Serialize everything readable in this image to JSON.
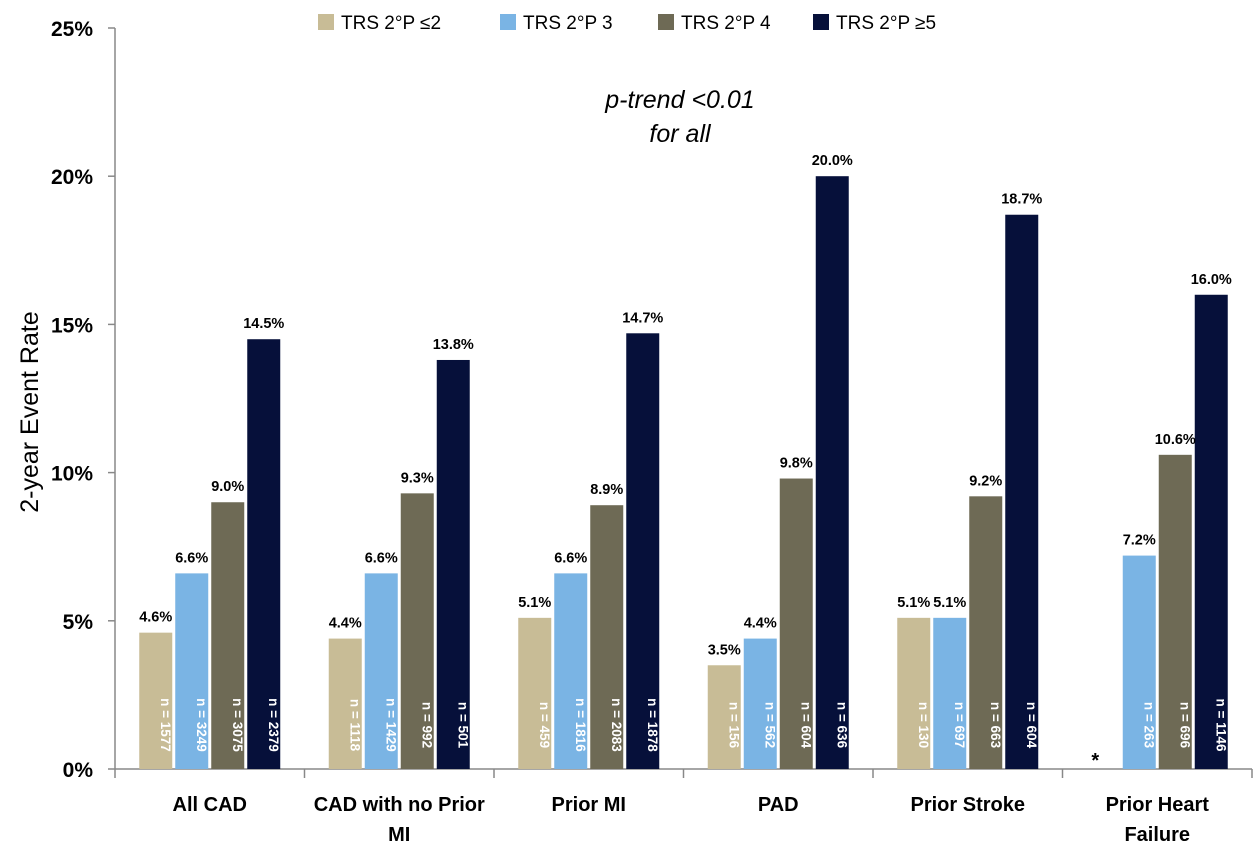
{
  "chart_data": {
    "type": "bar",
    "title": "",
    "ylabel": "2-year Event Rate",
    "xlabel": "",
    "ylim": [
      0,
      25
    ],
    "yticks": [
      "0%",
      "5%",
      "10%",
      "15%",
      "20%",
      "25%"
    ],
    "legend_position": "top",
    "categories": [
      [
        "All CAD"
      ],
      [
        "CAD with no Prior",
        "MI"
      ],
      [
        "Prior MI"
      ],
      [
        "PAD"
      ],
      [
        "Prior Stroke"
      ],
      [
        "Prior Heart",
        "Failure"
      ]
    ],
    "series": [
      {
        "name": "TRS 2°P  ≤2",
        "color": "#c8bc96",
        "values": [
          4.6,
          4.4,
          5.1,
          3.5,
          5.1,
          null
        ],
        "labels": [
          "4.6%",
          "4.4%",
          "5.1%",
          "3.5%",
          "5.1%",
          ""
        ],
        "n": [
          "n = 1577",
          "n = 1118",
          "n = 459",
          "n = 156",
          "n = 130",
          ""
        ]
      },
      {
        "name": "TRS 2°P  3",
        "color": "#7ab4e4",
        "values": [
          6.6,
          6.6,
          6.6,
          4.4,
          5.1,
          7.2
        ],
        "labels": [
          "6.6%",
          "6.6%",
          "6.6%",
          "4.4%",
          "5.1%",
          "7.2%"
        ],
        "n": [
          "n = 3249",
          "n = 1429",
          "n = 1816",
          "n = 562",
          "n = 697",
          "n = 263"
        ]
      },
      {
        "name": "TRS 2°P  4",
        "color": "#6e6a55",
        "values": [
          9.0,
          9.3,
          8.9,
          9.8,
          9.2,
          10.6
        ],
        "labels": [
          "9.0%",
          "9.3%",
          "8.9%",
          "9.8%",
          "9.2%",
          "10.6%"
        ],
        "n": [
          "n = 3075",
          "n = 992",
          "n = 2083",
          "n = 604",
          "n = 663",
          "n = 696"
        ]
      },
      {
        "name": "TRS 2°P  ≥5",
        "color": "#06103a",
        "values": [
          14.5,
          13.8,
          14.7,
          20.0,
          18.7,
          16.0
        ],
        "labels": [
          "14.5%",
          "13.8%",
          "14.7%",
          "20.0%",
          "18.7%",
          "16.0%"
        ],
        "n": [
          "n = 2379",
          "n = 501",
          "n = 1878",
          "n = 636",
          "n = 604",
          "n = 1146"
        ]
      }
    ],
    "annotations": [
      "p-trend <0.01",
      "for all"
    ],
    "missing_marker": "*"
  }
}
